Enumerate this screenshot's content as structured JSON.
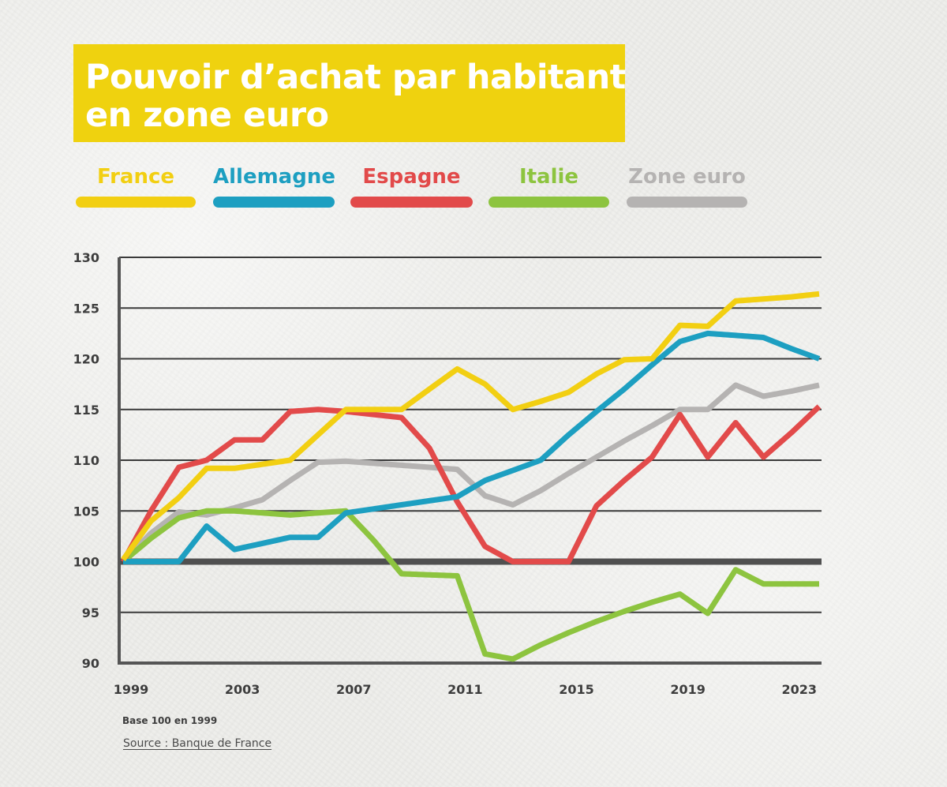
{
  "chart_data": {
    "type": "line",
    "title_lines": [
      "Pouvoir d’achat par habitant",
      "en zone euro"
    ],
    "note": "Base 100 en 1999",
    "source": "Source : Banque de France",
    "ylim": [
      90,
      130
    ],
    "y_ticks": [
      90,
      95,
      100,
      105,
      110,
      115,
      120,
      125,
      130
    ],
    "xlim": [
      1999,
      2024
    ],
    "x_ticks": [
      1999,
      2003,
      2007,
      2011,
      2015,
      2019,
      2023
    ],
    "baseline": 100,
    "grid": true,
    "legend_position": "top",
    "series": [
      {
        "name": "Zone euro",
        "color": "#b5b3b2",
        "x": [
          1999,
          2000,
          2001,
          2002,
          2003,
          2004,
          2005,
          2006,
          2007,
          2008,
          2009,
          2010,
          2011,
          2012,
          2013,
          2014,
          2015,
          2016,
          2017,
          2018,
          2019,
          2020,
          2021,
          2022,
          2023,
          2024
        ],
        "values": [
          100,
          102.8,
          104.9,
          104.6,
          105.3,
          106.1,
          108,
          109.8,
          109.9,
          109.7,
          109.5,
          109.3,
          109.1,
          106.5,
          105.6,
          107,
          108.7,
          110.3,
          111.9,
          113.4,
          115,
          115,
          117.4,
          116.3,
          116.8,
          117.4
        ]
      },
      {
        "name": "Italie",
        "color": "#8dc43f",
        "x": [
          1999,
          2000,
          2001,
          2002,
          2003,
          2004,
          2005,
          2006,
          2007,
          2008,
          2009,
          2010,
          2011,
          2012,
          2013,
          2014,
          2015,
          2016,
          2017,
          2018,
          2019,
          2020,
          2021,
          2022,
          2023,
          2024
        ],
        "values": [
          100,
          102.3,
          104.3,
          105,
          105,
          104.8,
          104.6,
          104.8,
          105,
          102.1,
          98.8,
          98.7,
          98.6,
          90.9,
          90.4,
          91.8,
          93,
          94.1,
          95.1,
          96,
          96.8,
          94.9,
          99.2,
          97.8,
          97.8,
          97.8
        ]
      },
      {
        "name": "Espagne",
        "color": "#e24a4a",
        "x": [
          1999,
          2000,
          2001,
          2002,
          2003,
          2004,
          2005,
          2006,
          2007,
          2008,
          2009,
          2010,
          2011,
          2012,
          2013,
          2014,
          2015,
          2016,
          2017,
          2018,
          2019,
          2020,
          2021,
          2022,
          2023,
          2024
        ],
        "values": [
          100,
          105,
          109.3,
          110,
          112,
          112,
          114.8,
          115,
          114.8,
          114.5,
          114.2,
          111.2,
          105.9,
          101.5,
          100,
          100,
          100,
          105.5,
          108,
          110.3,
          114.5,
          110.3,
          113.7,
          110.3,
          112.7,
          115.3
        ]
      },
      {
        "name": "Allemagne",
        "color": "#1d9fc1",
        "x": [
          1999,
          2000,
          2001,
          2002,
          2003,
          2004,
          2005,
          2006,
          2007,
          2008,
          2009,
          2010,
          2011,
          2012,
          2013,
          2014,
          2015,
          2016,
          2017,
          2018,
          2019,
          2020,
          2021,
          2022,
          2023,
          2024
        ],
        "values": [
          100,
          100,
          100,
          103.5,
          101.2,
          101.8,
          102.4,
          102.4,
          104.8,
          105.2,
          105.6,
          106,
          106.4,
          108,
          109,
          110,
          112.5,
          114.8,
          117,
          119.4,
          121.7,
          122.5,
          122.3,
          122.1,
          121,
          120
        ]
      },
      {
        "name": "France",
        "color": "#f2cf12",
        "x": [
          1999,
          2000,
          2001,
          2002,
          2003,
          2004,
          2005,
          2006,
          2007,
          2008,
          2009,
          2010,
          2011,
          2012,
          2013,
          2014,
          2015,
          2016,
          2017,
          2018,
          2019,
          2020,
          2021,
          2022,
          2023,
          2024
        ],
        "values": [
          100.2,
          104,
          106.3,
          109.2,
          109.2,
          109.6,
          110,
          112.5,
          115,
          115,
          115,
          117,
          119,
          117.5,
          115,
          115.8,
          116.7,
          118.5,
          119.9,
          120,
          123.3,
          123.2,
          125.7,
          125.9,
          126.1,
          126.4
        ]
      }
    ]
  }
}
